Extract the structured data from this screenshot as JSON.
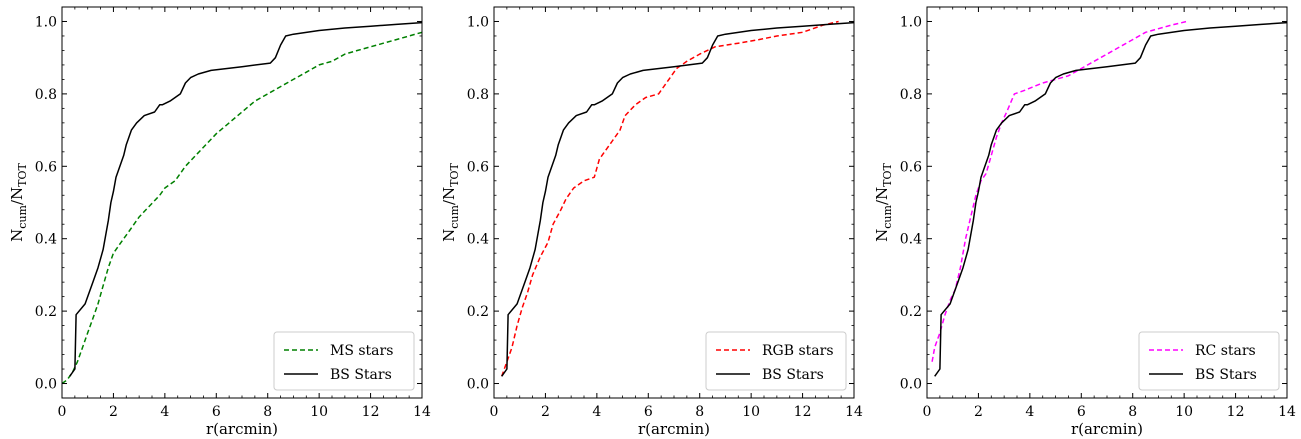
{
  "chart_data": [
    {
      "type": "line",
      "xlabel": "r(arcmin)",
      "ylabel_main": "N",
      "ylabel_sub1": "cum",
      "ylabel_sep": "/N",
      "ylabel_sub2": "TOT",
      "xlim": [
        0,
        14
      ],
      "ylim": [
        -0.04,
        1.04
      ],
      "xticks": [
        0,
        2,
        4,
        6,
        8,
        10,
        12,
        14
      ],
      "yticks": [
        0.0,
        0.2,
        0.4,
        0.6,
        0.8,
        1.0
      ],
      "xtick_labels": [
        "0",
        "2",
        "4",
        "6",
        "8",
        "10",
        "12",
        "14"
      ],
      "ytick_labels": [
        "0.0",
        "0.2",
        "0.4",
        "0.6",
        "0.8",
        "1.0"
      ],
      "legend_position": "lower-right",
      "series": [
        {
          "name": "MS stars",
          "color": "#008000",
          "style": "dashed",
          "x": [
            0.0,
            0.2,
            0.4,
            0.6,
            0.8,
            1.0,
            1.2,
            1.4,
            1.6,
            1.8,
            2.0,
            2.3,
            2.6,
            3.0,
            3.4,
            3.8,
            4.0,
            4.4,
            4.8,
            5.2,
            5.6,
            6.0,
            6.5,
            7.0,
            7.5,
            8.0,
            8.5,
            9.0,
            9.5,
            10.0,
            10.5,
            11.0,
            11.5,
            12.0,
            12.5,
            13.0,
            13.5,
            14.0
          ],
          "y": [
            0.0,
            0.01,
            0.03,
            0.06,
            0.1,
            0.14,
            0.18,
            0.22,
            0.27,
            0.32,
            0.36,
            0.39,
            0.42,
            0.46,
            0.49,
            0.52,
            0.54,
            0.56,
            0.6,
            0.63,
            0.66,
            0.69,
            0.72,
            0.75,
            0.78,
            0.8,
            0.82,
            0.84,
            0.86,
            0.88,
            0.89,
            0.91,
            0.92,
            0.93,
            0.94,
            0.95,
            0.96,
            0.97
          ]
        },
        {
          "name": "BS Stars",
          "color": "#000000",
          "style": "solid",
          "x": [
            0.3,
            0.5,
            0.55,
            0.9,
            1.2,
            1.4,
            1.6,
            1.7,
            1.8,
            1.9,
            2.0,
            2.1,
            2.2,
            2.4,
            2.5,
            2.6,
            2.7,
            2.9,
            3.2,
            3.6,
            3.8,
            3.9,
            4.2,
            4.6,
            4.8,
            5.0,
            5.3,
            5.8,
            7.0,
            8.1,
            8.3,
            8.5,
            8.7,
            9.0,
            10.0,
            11.0,
            12.0,
            13.0,
            14.0
          ],
          "y": [
            0.02,
            0.04,
            0.19,
            0.22,
            0.28,
            0.32,
            0.37,
            0.41,
            0.45,
            0.5,
            0.53,
            0.57,
            0.59,
            0.63,
            0.66,
            0.68,
            0.7,
            0.72,
            0.74,
            0.75,
            0.77,
            0.77,
            0.78,
            0.8,
            0.83,
            0.845,
            0.855,
            0.865,
            0.875,
            0.885,
            0.9,
            0.935,
            0.96,
            0.965,
            0.975,
            0.982,
            0.987,
            0.992,
            0.997
          ]
        }
      ]
    },
    {
      "type": "line",
      "xlabel": "r(arcmin)",
      "ylabel_main": "N",
      "ylabel_sub1": "cum",
      "ylabel_sep": "/N",
      "ylabel_sub2": "TOT",
      "xlim": [
        0,
        14
      ],
      "ylim": [
        -0.04,
        1.04
      ],
      "xticks": [
        0,
        2,
        4,
        6,
        8,
        10,
        12,
        14
      ],
      "yticks": [
        0.0,
        0.2,
        0.4,
        0.6,
        0.8,
        1.0
      ],
      "xtick_labels": [
        "0",
        "2",
        "4",
        "6",
        "8",
        "10",
        "12",
        "14"
      ],
      "ytick_labels": [
        "0.0",
        "0.2",
        "0.4",
        "0.6",
        "0.8",
        "1.0"
      ],
      "legend_position": "lower-right",
      "series": [
        {
          "name": "RGB stars",
          "color": "#ff0000",
          "style": "dashed",
          "x": [
            0.3,
            0.5,
            0.7,
            0.9,
            1.1,
            1.3,
            1.5,
            1.8,
            2.1,
            2.3,
            2.6,
            2.8,
            3.1,
            3.5,
            3.9,
            4.1,
            4.3,
            4.6,
            4.9,
            5.1,
            5.5,
            5.9,
            6.4,
            6.8,
            7.1,
            7.5,
            8.0,
            8.6,
            9.5,
            10.3,
            11.0,
            12.0,
            12.8,
            13.4
          ],
          "y": [
            0.02,
            0.06,
            0.1,
            0.16,
            0.21,
            0.25,
            0.3,
            0.35,
            0.39,
            0.44,
            0.48,
            0.51,
            0.54,
            0.56,
            0.57,
            0.62,
            0.64,
            0.67,
            0.7,
            0.74,
            0.77,
            0.79,
            0.8,
            0.84,
            0.87,
            0.89,
            0.91,
            0.93,
            0.94,
            0.95,
            0.96,
            0.97,
            0.99,
            1.0
          ]
        },
        {
          "name": "BS Stars",
          "color": "#000000",
          "style": "solid",
          "x": [
            0.3,
            0.5,
            0.55,
            0.9,
            1.2,
            1.4,
            1.6,
            1.7,
            1.8,
            1.9,
            2.0,
            2.1,
            2.2,
            2.4,
            2.5,
            2.6,
            2.7,
            2.9,
            3.2,
            3.6,
            3.8,
            3.9,
            4.2,
            4.6,
            4.8,
            5.0,
            5.3,
            5.8,
            7.0,
            8.1,
            8.3,
            8.5,
            8.7,
            9.0,
            10.0,
            11.0,
            12.0,
            13.0,
            14.0
          ],
          "y": [
            0.02,
            0.04,
            0.19,
            0.22,
            0.28,
            0.32,
            0.37,
            0.41,
            0.45,
            0.5,
            0.53,
            0.57,
            0.59,
            0.63,
            0.66,
            0.68,
            0.7,
            0.72,
            0.74,
            0.75,
            0.77,
            0.77,
            0.78,
            0.8,
            0.83,
            0.845,
            0.855,
            0.865,
            0.875,
            0.885,
            0.9,
            0.935,
            0.96,
            0.965,
            0.975,
            0.982,
            0.987,
            0.992,
            0.997
          ]
        }
      ]
    },
    {
      "type": "line",
      "xlabel": "r(arcmin)",
      "ylabel_main": "N",
      "ylabel_sub1": "cum",
      "ylabel_sep": "/N",
      "ylabel_sub2": "TOT",
      "xlim": [
        0,
        14
      ],
      "ylim": [
        -0.04,
        1.04
      ],
      "xticks": [
        0,
        2,
        4,
        6,
        8,
        10,
        12,
        14
      ],
      "yticks": [
        0.0,
        0.2,
        0.4,
        0.6,
        0.8,
        1.0
      ],
      "xtick_labels": [
        "0",
        "2",
        "4",
        "6",
        "8",
        "10",
        "12",
        "14"
      ],
      "ytick_labels": [
        "0.0",
        "0.2",
        "0.4",
        "0.6",
        "0.8",
        "1.0"
      ],
      "legend_position": "lower-right",
      "series": [
        {
          "name": "RC stars",
          "color": "#ff00ff",
          "style": "dashed",
          "x": [
            0.2,
            0.3,
            0.5,
            0.7,
            0.9,
            1.1,
            1.3,
            1.5,
            1.7,
            1.9,
            2.1,
            2.3,
            2.5,
            2.7,
            2.9,
            3.1,
            3.4,
            3.8,
            4.5,
            5.0,
            5.5,
            6.0,
            6.5,
            7.0,
            7.5,
            8.0,
            8.5,
            9.0,
            9.5,
            10.1
          ],
          "y": [
            0.06,
            0.1,
            0.14,
            0.19,
            0.23,
            0.26,
            0.32,
            0.4,
            0.46,
            0.52,
            0.56,
            0.58,
            0.63,
            0.68,
            0.72,
            0.75,
            0.8,
            0.81,
            0.83,
            0.84,
            0.85,
            0.87,
            0.89,
            0.91,
            0.93,
            0.95,
            0.97,
            0.98,
            0.99,
            1.0
          ]
        },
        {
          "name": "BS Stars",
          "color": "#000000",
          "style": "solid",
          "x": [
            0.3,
            0.5,
            0.55,
            0.9,
            1.2,
            1.4,
            1.6,
            1.7,
            1.8,
            1.9,
            2.0,
            2.1,
            2.2,
            2.4,
            2.5,
            2.6,
            2.7,
            2.9,
            3.2,
            3.6,
            3.8,
            3.9,
            4.2,
            4.6,
            4.8,
            5.0,
            5.3,
            5.8,
            7.0,
            8.1,
            8.3,
            8.5,
            8.7,
            9.0,
            10.0,
            11.0,
            12.0,
            13.0,
            14.0
          ],
          "y": [
            0.02,
            0.04,
            0.19,
            0.22,
            0.28,
            0.32,
            0.37,
            0.41,
            0.45,
            0.5,
            0.53,
            0.57,
            0.59,
            0.63,
            0.66,
            0.68,
            0.7,
            0.72,
            0.74,
            0.75,
            0.77,
            0.77,
            0.78,
            0.8,
            0.83,
            0.845,
            0.855,
            0.865,
            0.875,
            0.885,
            0.9,
            0.935,
            0.96,
            0.965,
            0.975,
            0.982,
            0.987,
            0.992,
            0.997
          ]
        }
      ]
    }
  ]
}
